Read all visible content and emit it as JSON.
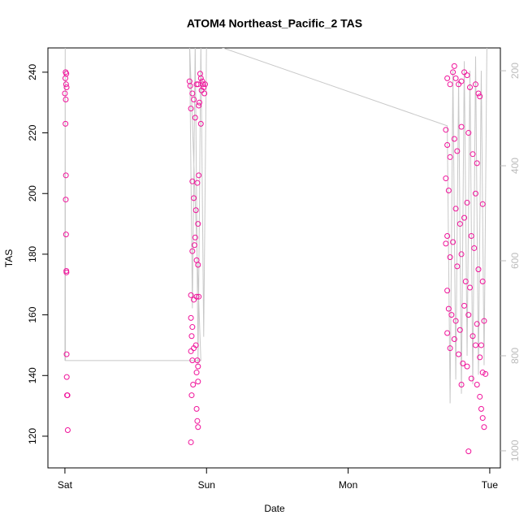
{
  "chart_data": {
    "type": "scatter",
    "title": "ATOM4 Northeast_Pacific_2 TAS",
    "xlabel": "Date",
    "ylabel": "TAS",
    "xlim": [
      -0.12,
      3.075
    ],
    "ylim": [
      109.55,
      248.0
    ],
    "y2lim": [
      1036,
      152
    ],
    "xticks": [
      {
        "value": 0,
        "label": "Sat"
      },
      {
        "value": 1,
        "label": "Sun"
      },
      {
        "value": 2,
        "label": "Mon"
      },
      {
        "value": 3,
        "label": "Tue"
      }
    ],
    "yticks": [
      120,
      140,
      160,
      180,
      200,
      220,
      240
    ],
    "y2ticks": [
      200,
      400,
      600,
      800,
      1000
    ],
    "series": [
      {
        "type": "scatter",
        "color": "#f0129a",
        "x": [
          0.005,
          0.01,
          0.003,
          0.008,
          0.012,
          0.0,
          0.006,
          0.004,
          0.007,
          0.006,
          0.008,
          0.01,
          0.011,
          0.012,
          0.013,
          0.015,
          0.018,
          0.02,
          0.88,
          0.885,
          0.89,
          0.9,
          0.91,
          0.92,
          0.93,
          0.94,
          0.945,
          0.95,
          0.955,
          0.96,
          0.965,
          0.97,
          0.975,
          0.98,
          0.985,
          0.99,
          0.96,
          0.945,
          0.935,
          0.9,
          0.91,
          0.925,
          0.94,
          0.92,
          0.915,
          0.9,
          0.93,
          0.94,
          0.89,
          0.91,
          0.93,
          0.945,
          0.89,
          0.9,
          0.895,
          0.91,
          0.89,
          0.925,
          0.935,
          0.94,
          0.93,
          0.9,
          0.905,
          0.94,
          0.93,
          0.935,
          0.94,
          0.895,
          0.89,
          2.7,
          2.72,
          2.74,
          2.75,
          2.76,
          2.78,
          2.8,
          2.82,
          2.84,
          2.86,
          2.9,
          2.92,
          2.93,
          2.69,
          2.7,
          2.72,
          2.75,
          2.77,
          2.8,
          2.85,
          2.88,
          2.91,
          2.69,
          2.71,
          2.76,
          2.79,
          2.82,
          2.84,
          2.87,
          2.9,
          2.95,
          2.69,
          2.7,
          2.72,
          2.74,
          2.77,
          2.8,
          2.83,
          2.86,
          2.89,
          2.92,
          2.95,
          2.7,
          2.71,
          2.73,
          2.76,
          2.79,
          2.82,
          2.85,
          2.88,
          2.91,
          2.94,
          2.96,
          2.7,
          2.72,
          2.75,
          2.78,
          2.81,
          2.84,
          2.87,
          2.9,
          2.93,
          2.95,
          2.8,
          2.91,
          2.93,
          2.94,
          2.95,
          2.96,
          2.97,
          2.85
        ],
        "values": [
          240,
          239.5,
          238,
          236,
          235,
          233,
          231,
          223,
          206,
          198,
          186.5,
          174.5,
          174,
          147,
          139.5,
          133.5,
          133.5,
          122,
          237,
          235.5,
          228,
          233,
          231,
          225,
          236,
          236,
          229,
          230,
          239.5,
          238,
          234,
          237,
          236,
          235,
          233,
          236,
          223,
          206,
          203.5,
          204,
          198.5,
          194.5,
          190,
          185.5,
          183,
          181,
          178,
          176.5,
          166.5,
          165,
          166,
          166,
          159,
          156,
          153,
          149,
          148,
          150,
          145,
          143,
          141,
          145,
          137,
          138,
          129,
          125,
          123,
          133.5,
          118,
          238,
          236,
          240,
          242,
          238,
          236,
          237,
          240,
          239,
          235,
          236,
          233,
          232,
          221,
          216,
          212,
          218,
          214,
          222,
          220,
          213,
          210,
          205,
          201,
          195,
          190,
          192,
          197,
          186,
          200,
          196.5,
          183.5,
          186,
          179,
          184,
          176,
          180,
          171,
          169,
          182,
          175,
          171,
          168,
          162,
          160,
          158,
          155,
          163,
          160,
          153,
          157,
          150,
          158,
          154,
          149,
          152,
          147,
          144,
          143,
          139,
          150,
          146,
          141,
          137,
          137,
          133,
          129,
          126,
          123,
          140.5,
          115
        ]
      },
      {
        "type": "line",
        "axis": "y2",
        "color": "#c8c8c8",
        "x": [
          0,
          0.002,
          0.004,
          0.96,
          0.88,
          0.9,
          0.92,
          0.94,
          0.96,
          0.98,
          1.0,
          2.7,
          2.72,
          2.74,
          2.76,
          2.78,
          2.8,
          2.82,
          2.84,
          2.86,
          2.88,
          2.9,
          2.92,
          2.94,
          2.96,
          2.98,
          3.0
        ],
        "values": [
          810,
          140,
          810,
          810,
          140,
          700,
          140,
          820,
          140,
          760,
          140,
          316,
          900,
          200,
          850,
          220,
          880,
          180,
          800,
          200,
          860,
          170,
          840,
          200,
          820,
          140,
          140
        ]
      }
    ]
  }
}
